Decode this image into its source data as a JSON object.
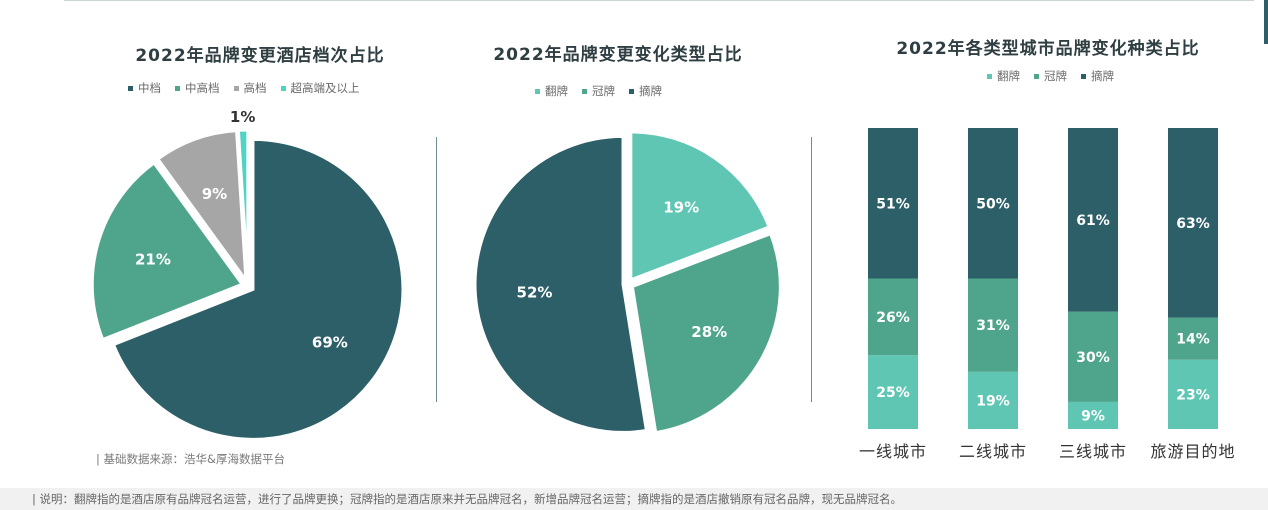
{
  "source_note": "| 基础数据来源：浩华&厚海数据平台",
  "footer_note": "| 说明：翻牌指的是酒店原有品牌冠名运营，进行了品牌更换；冠牌指的是酒店原来并无品牌冠名，新增品牌冠名运营；摘牌指的是酒店撤销原有冠名品牌，现无品牌冠名。",
  "colors": {
    "dark_teal": "#2d5f69",
    "mid_green": "#4fa58b",
    "light_teal": "#5fc6b3",
    "gray": "#a6a6a6",
    "aqua": "#4fd3c4"
  },
  "chart_data": [
    {
      "type": "pie",
      "title": "2022年品牌变更酒店档次占比",
      "legend_position": "top",
      "series": [
        {
          "name": "中档",
          "value": 69,
          "label": "69%",
          "color": "#2d5f69"
        },
        {
          "name": "中高档",
          "value": 21,
          "label": "21%",
          "color": "#4fa58b"
        },
        {
          "name": "高档",
          "value": 9,
          "label": "9%",
          "color": "#a6a6a6"
        },
        {
          "name": "超高端及以上",
          "value": 1,
          "label": "1%",
          "color": "#4fd3c4"
        }
      ]
    },
    {
      "type": "pie",
      "title": "2022年品牌变更变化类型占比",
      "legend_position": "top",
      "series": [
        {
          "name": "翻牌",
          "value": 19,
          "label": "19%",
          "color": "#5fc6b3"
        },
        {
          "name": "冠牌",
          "value": 28,
          "label": "28%",
          "color": "#4fa58b"
        },
        {
          "name": "摘牌",
          "value": 52,
          "label": "52%",
          "color": "#2d5f69"
        }
      ]
    },
    {
      "type": "bar",
      "stacked": true,
      "percent": true,
      "title": "2022年各类型城市品牌变化种类占比",
      "legend_position": "top",
      "categories": [
        "一线城市",
        "二线城市",
        "三线城市",
        "旅游目的地"
      ],
      "series": [
        {
          "name": "翻牌",
          "color": "#5fc6b3",
          "values": [
            25,
            19,
            9,
            23
          ],
          "labels": [
            "25%",
            "19%",
            "9%",
            "23%"
          ]
        },
        {
          "name": "冠牌",
          "color": "#4fa58b",
          "values": [
            26,
            31,
            30,
            14
          ],
          "labels": [
            "26%",
            "31%",
            "30%",
            "14%"
          ]
        },
        {
          "name": "摘牌",
          "color": "#2d5f69",
          "values": [
            51,
            50,
            61,
            63
          ],
          "labels": [
            "51%",
            "50%",
            "61%",
            "63%"
          ]
        }
      ]
    }
  ]
}
